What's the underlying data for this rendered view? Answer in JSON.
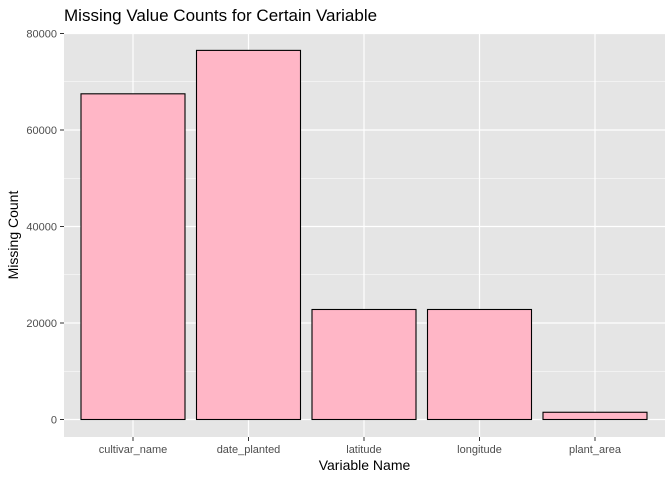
{
  "chart_data": {
    "type": "bar",
    "title": "Missing Value Counts for Certain Variable",
    "xlabel": "Variable Name",
    "ylabel": "Missing Count",
    "categories": [
      "cultivar_name",
      "date_planted",
      "latitude",
      "longitude",
      "plant_area"
    ],
    "values": [
      67500,
      76500,
      22800,
      22800,
      1500
    ],
    "ylim": [
      0,
      80000
    ],
    "yticks": [
      0,
      20000,
      40000,
      60000,
      80000
    ],
    "ytick_labels": [
      "0",
      "20000",
      "40000",
      "60000",
      "80000"
    ],
    "grid": true,
    "bar_fill": "#FFB6C6",
    "bar_stroke": "#000000",
    "panel_background": "#E5E5E5",
    "grid_color": "#FFFFFF"
  }
}
